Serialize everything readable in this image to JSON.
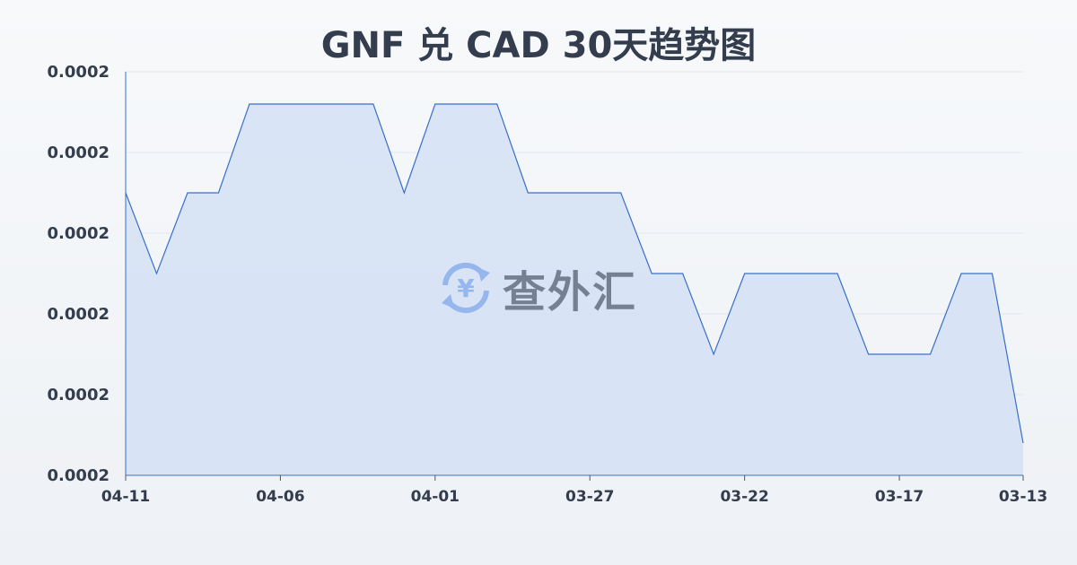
{
  "chart_data": {
    "type": "area",
    "title": "GNF 兑 CAD 30天趋势图",
    "xlabel": "",
    "ylabel": "",
    "x": [
      "04-11",
      "04-10",
      "04-09",
      "04-08",
      "04-07",
      "04-06",
      "04-05",
      "04-04",
      "04-03",
      "04-02",
      "04-01",
      "03-31",
      "03-30",
      "03-29",
      "03-28",
      "03-27",
      "03-26",
      "03-25",
      "03-24",
      "03-23",
      "03-22",
      "03-21",
      "03-20",
      "03-19",
      "03-18",
      "03-17",
      "03-16",
      "03-15",
      "03-14",
      "03-13"
    ],
    "values": [
      0.00017425,
      0.00017415,
      0.00017425,
      0.00017425,
      0.00017436,
      0.00017436,
      0.00017436,
      0.00017436,
      0.00017436,
      0.00017425,
      0.00017436,
      0.00017436,
      0.00017436,
      0.00017425,
      0.00017425,
      0.00017425,
      0.00017425,
      0.00017415,
      0.00017415,
      0.00017405,
      0.00017415,
      0.00017415,
      0.00017415,
      0.00017415,
      0.00017405,
      0.00017405,
      0.00017405,
      0.00017415,
      0.00017415,
      0.00017394
    ],
    "x_tick_labels": [
      "04-11",
      "04-06",
      "04-01",
      "03-27",
      "03-22",
      "03-17",
      "03-13"
    ],
    "y_tick_labels": [
      "0.0002",
      "0.0002",
      "0.0002",
      "0.0002",
      "0.0002",
      "0.0002"
    ],
    "ylim": [
      0.0001739,
      0.0001744
    ],
    "grid": true,
    "line_color": "#3a6fc9",
    "fill_color": "#d4e0f5"
  },
  "watermark": {
    "text": "查外汇",
    "icon": "yen-exchange-icon"
  }
}
